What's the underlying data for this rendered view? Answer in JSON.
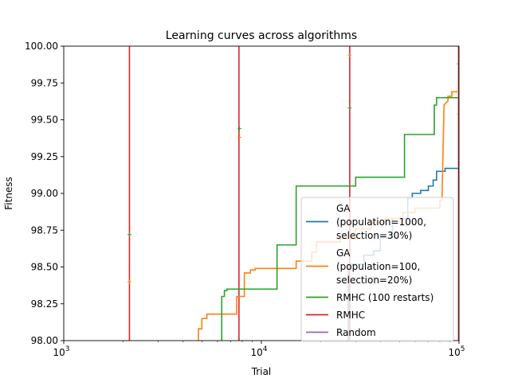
{
  "chart_data": {
    "type": "line",
    "title": "Learning curves across algorithms",
    "xlabel": "Trial",
    "ylabel": "Fitness",
    "xscale": "log",
    "xlim": [
      1000,
      100000
    ],
    "ylim": [
      98.0,
      100.0
    ],
    "x_ticks": [
      {
        "value": 1000,
        "base": "10",
        "exp": "3"
      },
      {
        "value": 10000,
        "base": "10",
        "exp": "4"
      },
      {
        "value": 100000,
        "base": "10",
        "exp": "5"
      }
    ],
    "y_ticks": [
      "98.00",
      "98.25",
      "98.50",
      "98.75",
      "99.00",
      "99.25",
      "99.50",
      "99.75",
      "100.00"
    ],
    "legend_position": "lower-right",
    "series": [
      {
        "name": "GA (population=1000, selection=30%)",
        "legend_lines": [
          "GA",
          "(population=1000,",
          "selection=30%)"
        ],
        "color": "#1f77b4",
        "points": [
          [
            27500,
            98.0
          ],
          [
            27500,
            98.52
          ],
          [
            33000,
            98.52
          ],
          [
            33000,
            98.58
          ],
          [
            37000,
            98.58
          ],
          [
            37000,
            98.61
          ],
          [
            40000,
            98.61
          ],
          [
            40000,
            98.7
          ],
          [
            46000,
            98.7
          ],
          [
            46000,
            98.83
          ],
          [
            55000,
            98.83
          ],
          [
            55000,
            98.97
          ],
          [
            58000,
            98.97
          ],
          [
            58000,
            99.0
          ],
          [
            64000,
            99.0
          ],
          [
            64000,
            99.02
          ],
          [
            70000,
            99.02
          ],
          [
            70000,
            99.05
          ],
          [
            74000,
            99.05
          ],
          [
            74000,
            99.09
          ],
          [
            77000,
            99.09
          ],
          [
            77000,
            99.15
          ],
          [
            85000,
            99.15
          ],
          [
            85000,
            99.17
          ],
          [
            100000,
            99.17
          ]
        ]
      },
      {
        "name": "GA (population=100, selection=20%)",
        "legend_lines": [
          "GA",
          "(population=100,",
          "selection=20%)"
        ],
        "color": "#ff7f0e",
        "points": [
          [
            4800,
            98.0
          ],
          [
            4800,
            98.08
          ],
          [
            5000,
            98.08
          ],
          [
            5000,
            98.15
          ],
          [
            5300,
            98.15
          ],
          [
            5300,
            98.18
          ],
          [
            7500,
            98.18
          ],
          [
            7500,
            98.3
          ],
          [
            8200,
            98.3
          ],
          [
            8200,
            98.46
          ],
          [
            8800,
            98.46
          ],
          [
            8800,
            98.48
          ],
          [
            9300,
            98.48
          ],
          [
            9300,
            98.49
          ],
          [
            15000,
            98.49
          ],
          [
            15000,
            98.54
          ],
          [
            18000,
            98.54
          ],
          [
            18000,
            98.6
          ],
          [
            19000,
            98.6
          ],
          [
            19000,
            98.67
          ],
          [
            25000,
            98.67
          ],
          [
            25000,
            98.69
          ],
          [
            30000,
            98.69
          ],
          [
            30000,
            98.76
          ],
          [
            36000,
            98.76
          ],
          [
            36000,
            98.8
          ],
          [
            42000,
            98.8
          ],
          [
            42000,
            98.83
          ],
          [
            52000,
            98.83
          ],
          [
            52000,
            98.87
          ],
          [
            60000,
            98.87
          ],
          [
            60000,
            98.9
          ],
          [
            80000,
            98.9
          ],
          [
            80000,
            98.95
          ],
          [
            82000,
            98.95
          ],
          [
            84000,
            99.6
          ],
          [
            88000,
            99.63
          ],
          [
            88000,
            99.66
          ],
          [
            92000,
            99.66
          ],
          [
            92000,
            99.69
          ],
          [
            100000,
            99.69
          ]
        ]
      },
      {
        "name": "RMHC (100 restarts)",
        "legend_lines": [
          "RMHC (100 restarts)"
        ],
        "color": "#2ca02c",
        "points": [
          [
            6300,
            98.0
          ],
          [
            6300,
            98.3
          ],
          [
            6500,
            98.3
          ],
          [
            6500,
            98.34
          ],
          [
            6700,
            98.34
          ],
          [
            6700,
            98.35
          ],
          [
            12000,
            98.35
          ],
          [
            12000,
            98.65
          ],
          [
            15000,
            98.65
          ],
          [
            15000,
            99.05
          ],
          [
            30000,
            99.05
          ],
          [
            30000,
            99.11
          ],
          [
            53000,
            99.11
          ],
          [
            53000,
            99.4
          ],
          [
            75000,
            99.4
          ],
          [
            75000,
            99.6
          ],
          [
            77000,
            99.6
          ],
          [
            77000,
            99.65
          ],
          [
            100000,
            99.65
          ]
        ]
      },
      {
        "name": "RMHC",
        "legend_lines": [
          "RMHC"
        ],
        "color": "#d62728",
        "points": []
      },
      {
        "name": "Random",
        "legend_lines": [
          "Random"
        ],
        "color": "#9467bd",
        "points": []
      }
    ],
    "vertical_lines": [
      {
        "x": 2150,
        "color": "#d62728"
      },
      {
        "x": 7700,
        "color": "#d62728"
      },
      {
        "x": 28000,
        "color": "#d62728"
      },
      {
        "x": 99500,
        "color": "#d62728"
      }
    ],
    "markers": [
      {
        "x": 2150,
        "y": 98.72,
        "color": "#2ca02c"
      },
      {
        "x": 2150,
        "y": 98.4,
        "color": "#ff7f0e"
      },
      {
        "x": 7750,
        "y": 99.44,
        "color": "#2ca02c"
      },
      {
        "x": 7750,
        "y": 99.38,
        "color": "#ff7f0e"
      },
      {
        "x": 28000,
        "y": 99.94,
        "color": "#ff7f0e"
      },
      {
        "x": 28000,
        "y": 99.58,
        "color": "#2ca02c"
      },
      {
        "x": 100000,
        "y": 99.88,
        "color": "#1f77b4"
      },
      {
        "x": 100000,
        "y": 99.54,
        "color": "#ff7f0e"
      }
    ]
  }
}
